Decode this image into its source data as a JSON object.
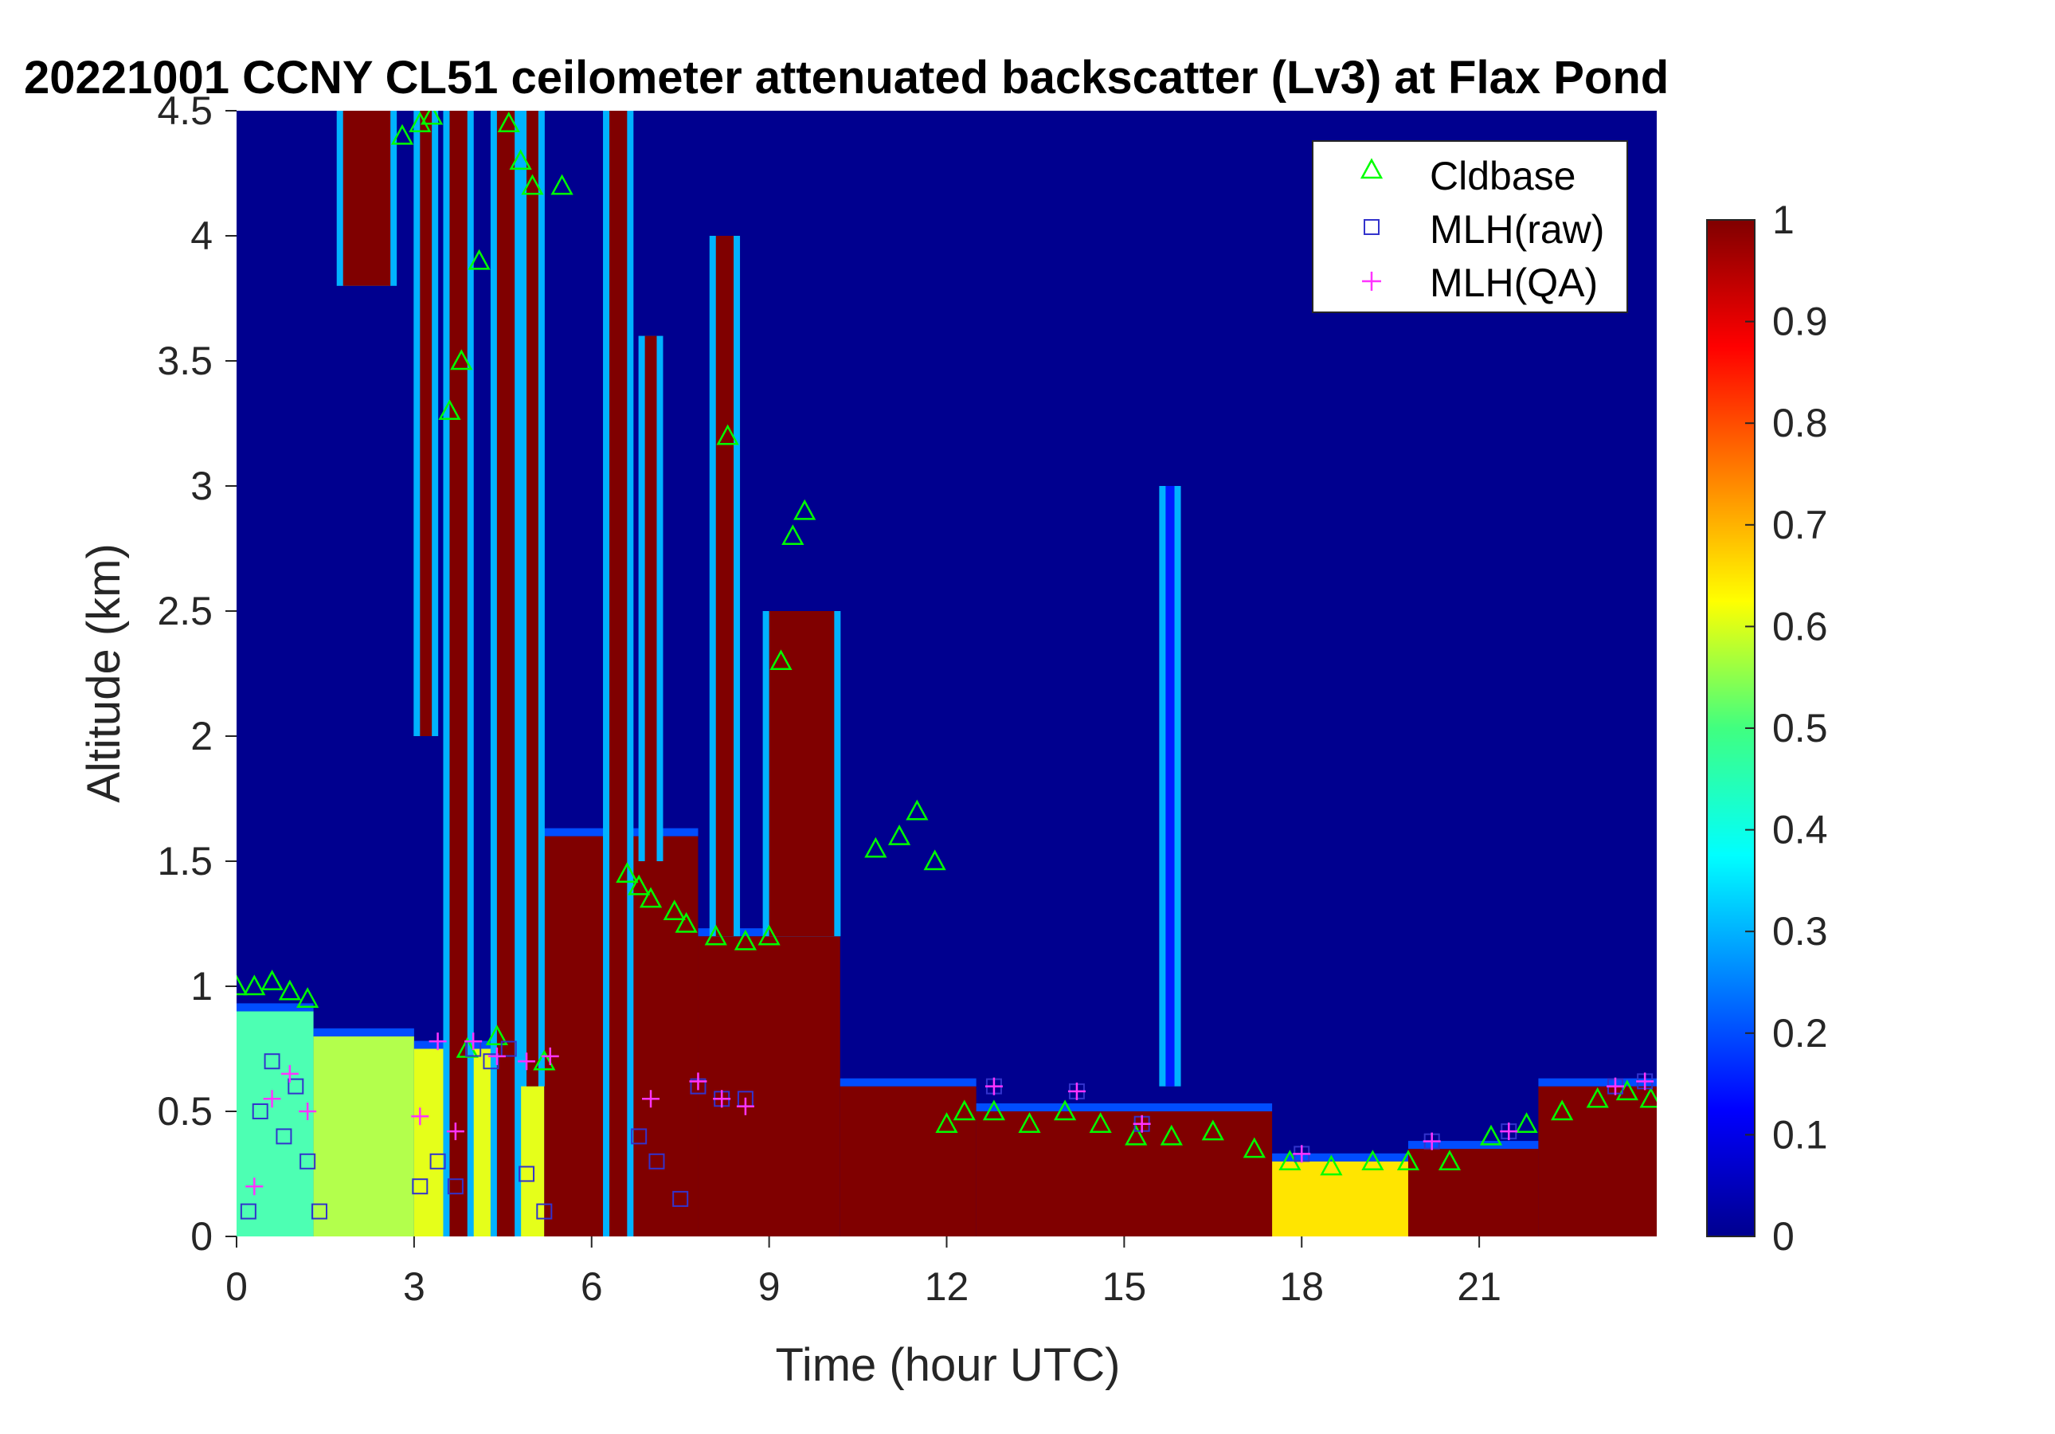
{
  "chart_data": {
    "type": "heatmap",
    "title": "20221001 CCNY CL51 ceilometer attenuated backscatter (Lv3) at Flax Pond",
    "xlabel": "Time (hour UTC)",
    "ylabel": "Altitude (km)",
    "xlim": [
      0,
      24
    ],
    "ylim": [
      0,
      4.5
    ],
    "xticks": [
      "0",
      "3",
      "6",
      "9",
      "12",
      "15",
      "18",
      "21"
    ],
    "yticks": [
      "0",
      "0.5",
      "1",
      "1.5",
      "2",
      "2.5",
      "3",
      "3.5",
      "4",
      "4.5"
    ],
    "colorbar": {
      "min": 0,
      "max": 1,
      "ticks": [
        "0",
        "0.1",
        "0.2",
        "0.3",
        "0.4",
        "0.5",
        "0.6",
        "0.7",
        "0.8",
        "0.9",
        "1"
      ],
      "colormap": "jet"
    },
    "legend": {
      "placement": "top-right",
      "entries": [
        {
          "label": "Cldbase",
          "marker": "triangle",
          "color": "#00ff00"
        },
        {
          "label": "MLH(raw)",
          "marker": "square",
          "color": "#3333cc"
        },
        {
          "label": "MLH(QA)",
          "marker": "plus",
          "color": "#ff33ff"
        }
      ]
    },
    "backscatter_layers": [
      {
        "x0": 0.0,
        "x1": 1.3,
        "y_top": 0.9,
        "level": 0.45
      },
      {
        "x0": 1.3,
        "x1": 3.0,
        "y_top": 0.8,
        "level": 0.55
      },
      {
        "x0": 3.0,
        "x1": 5.2,
        "y_top": 0.75,
        "level": 0.6
      },
      {
        "x0": 5.2,
        "x1": 7.8,
        "y_top": 1.6,
        "level": 1.0
      },
      {
        "x0": 7.8,
        "x1": 10.2,
        "y_top": 1.2,
        "level": 1.0
      },
      {
        "x0": 10.2,
        "x1": 12.5,
        "y_top": 0.6,
        "level": 1.0
      },
      {
        "x0": 12.5,
        "x1": 17.5,
        "y_top": 0.5,
        "level": 1.0
      },
      {
        "x0": 17.5,
        "x1": 19.8,
        "y_top": 0.3,
        "level": 0.65
      },
      {
        "x0": 19.8,
        "x1": 22.0,
        "y_top": 0.35,
        "level": 1.0
      },
      {
        "x0": 22.0,
        "x1": 24.0,
        "y_top": 0.6,
        "level": 1.0
      }
    ],
    "backscatter_plumes": [
      {
        "x0": 1.8,
        "x1": 2.6,
        "y0": 3.8,
        "y1": 4.5,
        "level": 1.0
      },
      {
        "x0": 3.1,
        "x1": 3.3,
        "y0": 2.0,
        "y1": 4.5,
        "level": 1.0
      },
      {
        "x0": 3.6,
        "x1": 3.9,
        "y0": 0.0,
        "y1": 4.5,
        "level": 1.0
      },
      {
        "x0": 4.4,
        "x1": 4.7,
        "y0": 0.0,
        "y1": 4.5,
        "level": 1.0
      },
      {
        "x0": 4.9,
        "x1": 5.1,
        "y0": 0.6,
        "y1": 4.5,
        "level": 1.0
      },
      {
        "x0": 6.3,
        "x1": 6.6,
        "y0": 0.0,
        "y1": 4.5,
        "level": 1.0
      },
      {
        "x0": 6.9,
        "x1": 7.1,
        "y0": 1.5,
        "y1": 3.6,
        "level": 1.0
      },
      {
        "x0": 8.1,
        "x1": 8.4,
        "y0": 1.2,
        "y1": 4.0,
        "level": 1.0
      },
      {
        "x0": 9.0,
        "x1": 10.1,
        "y0": 1.2,
        "y1": 2.5,
        "level": 1.0
      },
      {
        "x0": 15.7,
        "x1": 15.85,
        "y0": 0.6,
        "y1": 3.0,
        "level": 0.15
      }
    ],
    "cldbase": {
      "x": [
        0.0,
        0.3,
        0.6,
        0.9,
        1.2,
        2.8,
        3.1,
        3.3,
        3.6,
        3.8,
        3.9,
        4.1,
        4.4,
        4.6,
        4.8,
        5.0,
        5.2,
        5.5,
        6.6,
        6.8,
        7.0,
        7.4,
        7.6,
        8.1,
        8.3,
        8.6,
        9.0,
        9.2,
        9.4,
        9.6,
        10.8,
        11.2,
        11.5,
        11.8,
        12.0,
        12.3,
        12.8,
        13.4,
        14.0,
        14.6,
        15.2,
        15.8,
        16.5,
        17.2,
        17.8,
        18.5,
        19.2,
        19.8,
        20.5,
        21.2,
        21.8,
        22.4,
        23.0,
        23.5,
        23.9
      ],
      "y": [
        1.0,
        1.0,
        1.02,
        0.98,
        0.95,
        4.4,
        4.45,
        4.48,
        3.3,
        3.5,
        0.75,
        3.9,
        0.8,
        4.45,
        4.3,
        4.2,
        0.7,
        4.2,
        1.45,
        1.4,
        1.35,
        1.3,
        1.25,
        1.2,
        3.2,
        1.18,
        1.2,
        2.3,
        2.8,
        2.9,
        1.55,
        1.6,
        1.7,
        1.5,
        0.45,
        0.5,
        0.5,
        0.45,
        0.5,
        0.45,
        0.4,
        0.4,
        0.42,
        0.35,
        0.3,
        0.28,
        0.3,
        0.3,
        0.3,
        0.4,
        0.45,
        0.5,
        0.55,
        0.58,
        0.55
      ]
    },
    "mlh_raw": {
      "x": [
        0.2,
        0.4,
        0.6,
        0.8,
        1.0,
        1.2,
        1.4,
        3.1,
        3.4,
        3.7,
        4.0,
        4.3,
        4.6,
        4.9,
        5.2,
        6.8,
        7.1,
        7.5,
        7.8,
        8.2,
        8.6,
        12.8,
        14.2,
        15.3,
        18.0,
        20.2,
        21.5,
        23.3,
        23.8
      ],
      "y": [
        0.1,
        0.5,
        0.7,
        0.4,
        0.6,
        0.3,
        0.1,
        0.2,
        0.3,
        0.2,
        0.75,
        0.7,
        0.75,
        0.25,
        0.1,
        0.4,
        0.3,
        0.15,
        0.6,
        0.55,
        0.55,
        0.6,
        0.58,
        0.45,
        0.33,
        0.38,
        0.42,
        0.6,
        0.62
      ]
    },
    "mlh_qa": {
      "x": [
        0.3,
        0.6,
        0.9,
        1.2,
        3.1,
        3.4,
        3.7,
        4.0,
        4.4,
        4.9,
        5.3,
        7.0,
        7.8,
        8.2,
        8.6,
        12.8,
        14.2,
        15.3,
        18.0,
        20.2,
        21.5,
        23.3,
        23.8
      ],
      "y": [
        0.2,
        0.55,
        0.65,
        0.5,
        0.48,
        0.78,
        0.42,
        0.78,
        0.72,
        0.7,
        0.72,
        0.55,
        0.62,
        0.55,
        0.52,
        0.6,
        0.58,
        0.45,
        0.33,
        0.38,
        0.42,
        0.6,
        0.62
      ]
    }
  }
}
